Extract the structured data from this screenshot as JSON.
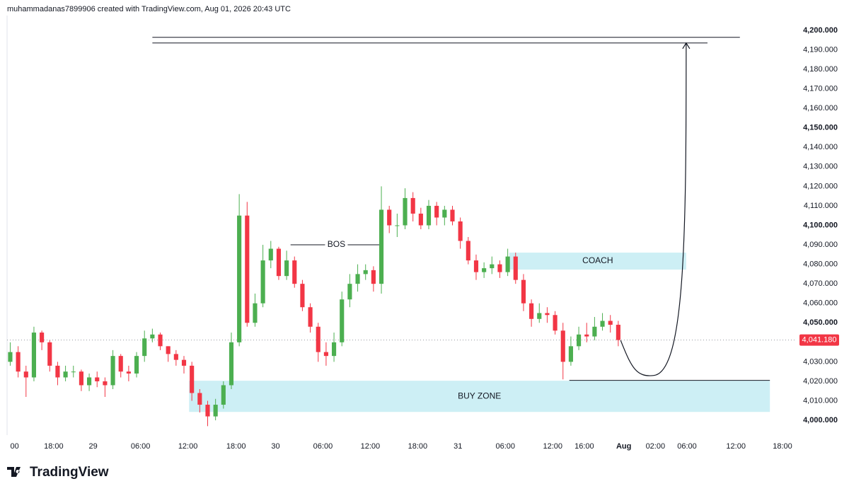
{
  "header": {
    "text": "muhammadanas7899906 created with TradingView.com, Aug 01, 2026 20:43 UTC"
  },
  "footer": {
    "logo": "TradingView"
  },
  "chart_data": {
    "type": "candlestick",
    "up_color": "#4caf50",
    "down_color": "#f23645",
    "grid": false,
    "x": [
      0,
      1,
      2,
      3,
      4,
      5,
      6,
      7,
      8,
      9,
      10,
      11,
      12,
      13,
      14,
      15,
      16,
      17,
      18,
      19,
      20,
      21,
      22,
      23,
      24,
      25,
      26,
      27,
      28,
      29,
      30,
      31,
      32,
      33,
      34,
      35,
      36,
      37,
      38,
      39,
      40,
      41,
      42,
      43,
      44,
      45,
      46,
      47,
      48,
      49,
      50,
      51,
      52,
      53,
      54,
      55,
      56,
      57,
      58,
      59,
      60,
      61,
      62,
      63,
      64,
      65,
      66,
      67,
      68,
      69,
      70,
      71,
      72,
      73,
      74,
      75,
      76,
      77
    ],
    "open": [
      4030,
      4035,
      4025,
      4022,
      4045,
      4040,
      4028,
      4022,
      4025,
      4025,
      4018,
      4022,
      4020,
      4018,
      4033,
      4025,
      4024,
      4033,
      4042,
      4044,
      4038,
      4034,
      4031,
      4028,
      4014,
      4008,
      4002,
      4008,
      4018,
      4040,
      4105,
      4050,
      4060,
      4082,
      4088,
      4074,
      4082,
      4070,
      4058,
      4048,
      4035,
      4033,
      4040,
      4062,
      4070,
      4075,
      4077,
      4070,
      4108,
      4100,
      4100,
      4114,
      4106,
      4100,
      4110,
      4104,
      4108,
      4102,
      4092,
      4082,
      4076,
      4078,
      4080,
      4076,
      4084,
      4072,
      4060,
      4052,
      4055,
      4054,
      4046,
      4030,
      4038,
      4044,
      4043,
      4048,
      4051,
      4049
    ],
    "high": [
      4040,
      4038,
      4028,
      4048,
      4046,
      4041,
      4030,
      4028,
      4028,
      4026,
      4024,
      4025,
      4022,
      4036,
      4034,
      4028,
      4035,
      4046,
      4047,
      4045,
      4038,
      4036,
      4033,
      4030,
      4016,
      4010,
      4011,
      4020,
      4045,
      4116,
      4112,
      4065,
      4090,
      4092,
      4089,
      4087,
      4084,
      4072,
      4060,
      4050,
      4040,
      4045,
      4066,
      4075,
      4080,
      4080,
      4079,
      4120,
      4110,
      4106,
      4119,
      4117,
      4109,
      4113,
      4112,
      4110,
      4110,
      4104,
      4094,
      4085,
      4081,
      4084,
      4082,
      4088,
      4086,
      4075,
      4062,
      4060,
      4058,
      4056,
      4050,
      4043,
      4048,
      4050,
      4053,
      4055,
      4054,
      4051
    ],
    "low": [
      4028,
      4022,
      4012,
      4020,
      4036,
      4025,
      4018,
      4020,
      4022,
      4015,
      4015,
      4017,
      4012,
      4016,
      4022,
      4020,
      4022,
      4030,
      4040,
      4036,
      4030,
      4028,
      4024,
      4010,
      4004,
      3997,
      4000,
      4006,
      4016,
      4038,
      4048,
      4048,
      4058,
      4078,
      4072,
      4072,
      4068,
      4056,
      4045,
      4030,
      4028,
      4030,
      4038,
      4058,
      4066,
      4072,
      4066,
      4065,
      4096,
      4094,
      4098,
      4102,
      4098,
      4098,
      4100,
      4100,
      4100,
      4088,
      4080,
      4072,
      4073,
      4075,
      4073,
      4074,
      4070,
      4056,
      4048,
      4050,
      4050,
      4044,
      4021,
      4028,
      4036,
      4040,
      4041,
      4046,
      4045,
      4038
    ],
    "close": [
      4035,
      4025,
      4022,
      4045,
      4040,
      4028,
      4022,
      4025,
      4025,
      4018,
      4022,
      4020,
      4018,
      4033,
      4025,
      4024,
      4033,
      4042,
      4044,
      4038,
      4034,
      4031,
      4028,
      4014,
      4008,
      4002,
      4008,
      4018,
      4040,
      4105,
      4050,
      4060,
      4082,
      4088,
      4074,
      4082,
      4070,
      4058,
      4048,
      4035,
      4033,
      4040,
      4062,
      4070,
      4075,
      4077,
      4070,
      4108,
      4100,
      4100,
      4114,
      4106,
      4100,
      4110,
      4104,
      4108,
      4102,
      4092,
      4082,
      4076,
      4078,
      4080,
      4076,
      4084,
      4072,
      4060,
      4052,
      4055,
      4054,
      4046,
      4030,
      4038,
      4044,
      4043,
      4048,
      4051,
      4049,
      4041.18
    ],
    "xlim": [
      -0.4,
      99.5
    ],
    "ylim": [
      3993.5,
      4208.3
    ],
    "xticks": [
      {
        "value": 0,
        "label": "00"
      },
      {
        "value": 5.5,
        "label": "18:00"
      },
      {
        "value": 10.5,
        "label": "29"
      },
      {
        "value": 16.5,
        "label": "06:00"
      },
      {
        "value": 22.5,
        "label": "12:00"
      },
      {
        "value": 28.6,
        "label": "18:00"
      },
      {
        "value": 33.6,
        "label": "30"
      },
      {
        "value": 39.6,
        "label": "06:00"
      },
      {
        "value": 45.6,
        "label": "12:00"
      },
      {
        "value": 51.6,
        "label": "18:00"
      },
      {
        "value": 56.7,
        "label": "31"
      },
      {
        "value": 62.7,
        "label": "06:00"
      },
      {
        "value": 68.7,
        "label": "12:00"
      },
      {
        "value": 72.7,
        "label": "16:00"
      },
      {
        "value": 77.7,
        "label": "Aug"
      },
      {
        "value": 81.7,
        "label": "02:00"
      },
      {
        "value": 85.7,
        "label": "06:00"
      },
      {
        "value": 91.9,
        "label": "12:00"
      },
      {
        "value": 97.8,
        "label": "18:00"
      }
    ],
    "yticks": [
      {
        "value": 4000,
        "label": "4,000.000"
      },
      {
        "value": 4010,
        "label": "4,010.000"
      },
      {
        "value": 4020,
        "label": "4,020.000"
      },
      {
        "value": 4030,
        "label": "4,030.000"
      },
      {
        "value": 4040,
        "label": "4,040.000"
      },
      {
        "value": 4050,
        "label": "4,050.000"
      },
      {
        "value": 4060,
        "label": "4,060.000"
      },
      {
        "value": 4070,
        "label": "4,070.000"
      },
      {
        "value": 4080,
        "label": "4,080.000"
      },
      {
        "value": 4090,
        "label": "4,090.000"
      },
      {
        "value": 4100,
        "label": "4,100.000"
      },
      {
        "value": 4110,
        "label": "4,110.000"
      },
      {
        "value": 4120,
        "label": "4,120.000"
      },
      {
        "value": 4130,
        "label": "4,130.000"
      },
      {
        "value": 4140,
        "label": "4,140.000"
      },
      {
        "value": 4150,
        "label": "4,150.000"
      },
      {
        "value": 4160,
        "label": "4,160.000"
      },
      {
        "value": 4170,
        "label": "4,170.000"
      },
      {
        "value": 4180,
        "label": "4,180.000"
      },
      {
        "value": 4190,
        "label": "4,190.000"
      },
      {
        "value": 4200,
        "label": "4,200.000"
      }
    ],
    "bold_every": 50,
    "last_price": {
      "value": 4041.18,
      "label": "4,041.180"
    },
    "annotations": {
      "buy_zone": {
        "label": "BUY ZONE",
        "x": [
          22.65,
          96.2
        ],
        "y": [
          4004.3,
          4020.3
        ],
        "color": "#cdeff5"
      },
      "coach": {
        "label": "COACH",
        "x": [
          63.2,
          85.6
        ],
        "y": [
          4077.3,
          4086
        ],
        "color": "#cdeff5"
      },
      "bos": {
        "label": "BOS",
        "x": [
          35.5,
          47.1
        ],
        "y": 4090
      },
      "low_line": {
        "x": [
          70.8,
          96.2
        ],
        "y": 4020.5
      },
      "target_lines": [
        {
          "x": [
            18,
            92.4
          ],
          "y": 4196.4
        },
        {
          "x": [
            18,
            88.3
          ],
          "y": 4193.5
        }
      ],
      "arrow": {
        "points": [
          [
            77.3,
            4041
          ],
          [
            81.5,
            4023
          ],
          [
            85.6,
            4193.5
          ]
        ]
      }
    }
  }
}
